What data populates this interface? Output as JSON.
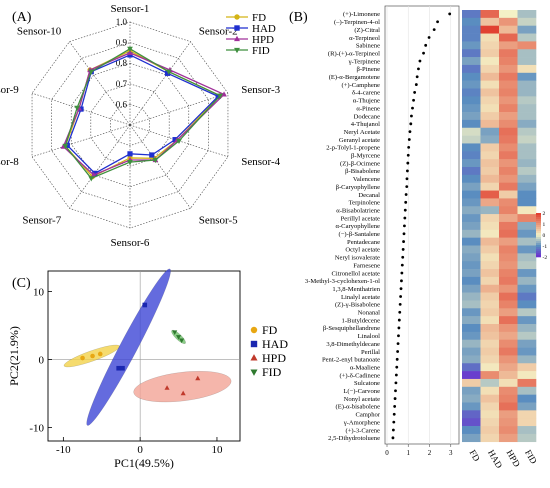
{
  "panel_labels": {
    "a": "(A)",
    "b": "(B)",
    "c": "(C)"
  },
  "chart_data": [
    {
      "type": "radar",
      "panel": "(A)",
      "axes": [
        "Sensor-1",
        "Sensor-2",
        "Sensor-3",
        "Sensor-4",
        "Sensor-5",
        "Sensor-6",
        "Sensor-7",
        "Sensor-8",
        "Sensor-9",
        "Sensor-10"
      ],
      "rlim": [
        0.5,
        1.0
      ],
      "ring_labels": [
        "0.6",
        "0.7",
        "0.8",
        "0.9",
        "1.0"
      ],
      "legend_position": "top-right",
      "series": [
        {
          "name": "FD",
          "color": "#d4b416",
          "marker": "circle",
          "values": [
            0.86,
            0.82,
            0.96,
            0.74,
            0.7,
            0.66,
            0.81,
            0.83,
            0.76,
            0.83
          ]
        },
        {
          "name": "HAD",
          "color": "#1f2fcf",
          "marker": "square",
          "values": [
            0.84,
            0.81,
            0.95,
            0.73,
            0.68,
            0.64,
            0.79,
            0.82,
            0.75,
            0.82
          ]
        },
        {
          "name": "HPD",
          "color": "#a0309a",
          "marker": "triangle-up",
          "values": [
            0.85,
            0.83,
            0.98,
            0.74,
            0.71,
            0.67,
            0.8,
            0.84,
            0.76,
            0.83
          ]
        },
        {
          "name": "FID",
          "color": "#3f8f3f",
          "marker": "triangle-down",
          "values": [
            0.87,
            0.82,
            0.96,
            0.75,
            0.71,
            0.68,
            0.82,
            0.83,
            0.77,
            0.82
          ]
        }
      ]
    },
    {
      "type": "dot+heatmap",
      "panel": "(B)",
      "compounds": [
        "(+)-Limonene",
        "(–)-Terpinen-4-ol",
        "(Z)-Citral",
        "α-Terpineol",
        "Sabinene",
        "(R)-(+)-α-Terpineol",
        "γ-Terpinene",
        "β-Pinene",
        "(E)-α-Bergamotene",
        "(+)-Camphene",
        "δ-4-carene",
        "α-Thujene",
        "α-Pinene",
        "Dodecane",
        "4-Thujanol",
        "Neryl Acetate",
        "Geranyl acetate",
        "2-p-Tolyl-1-propene",
        "β-Myrcene",
        "(Z)-β-Ocimene",
        "β-Bisabolene",
        "Valencene",
        "β-Caryophyllene",
        "Decanal",
        "Terpinolene",
        "α-Bisabolatriene",
        "Perillyl acetate",
        "α-Caryophyllene",
        "(−)-β-Santalene",
        "Pentadecane",
        "Octyl acetate",
        "Neryl isovalerate",
        "Farnesene",
        "Citronellol acetate",
        "3-Methyl-3-cyclohexen-1-ol",
        "1,3,8-Menthatrien",
        "Linalyl acetate",
        "(Z)-γ-Bisabolene",
        "Nonanal",
        "1-Butyldecene",
        "β-Sesquiphellandrene",
        "Linalool",
        "3,8-Dimethyldecane",
        "Perillal",
        "Pent-2-enyl butanoate",
        "α-Maaliene",
        "(+)-δ-Cadinene",
        "Sulcatone",
        "L(−)-Carvone",
        "Nonyl acetate",
        "(E)-α-bisabolene",
        "Camphor",
        "γ-Amorphene",
        "(+)-3-Carene",
        "2,5-Dihydrotoluene"
      ],
      "dot_values": [
        2.95,
        2.38,
        2.22,
        1.98,
        1.82,
        1.72,
        1.55,
        1.48,
        1.42,
        1.38,
        1.3,
        1.25,
        1.2,
        1.15,
        1.12,
        1.08,
        1.05,
        1.02,
        1.0,
        0.98,
        0.96,
        0.94,
        0.93,
        0.9,
        0.88,
        0.86,
        0.84,
        0.82,
        0.8,
        0.78,
        0.76,
        0.74,
        0.72,
        0.7,
        0.68,
        0.66,
        0.64,
        0.62,
        0.6,
        0.58,
        0.56,
        0.54,
        0.52,
        0.5,
        0.48,
        0.46,
        0.44,
        0.42,
        0.4,
        0.38,
        0.36,
        0.34,
        0.32,
        0.3,
        0.28
      ],
      "dot_xlim": [
        0,
        3.2
      ],
      "dot_ticks": [
        "0",
        "1",
        "2",
        "3"
      ],
      "heatmap_columns": [
        "FD",
        "HAD",
        "HPD",
        "FID"
      ],
      "heatmap_values": [
        [
          -1.2,
          1.5,
          0.0,
          -0.5
        ],
        [
          -1.0,
          0.5,
          1.0,
          -0.3
        ],
        [
          -1.1,
          1.9,
          0.6,
          -0.8
        ],
        [
          -1.1,
          0.2,
          1.5,
          -0.4
        ],
        [
          -0.9,
          0.3,
          0.9,
          1.1
        ],
        [
          -1.2,
          0.4,
          1.3,
          -0.5
        ],
        [
          -0.8,
          0.1,
          1.2,
          -0.5
        ],
        [
          -1.2,
          0.3,
          1.0,
          0.2
        ],
        [
          -1.0,
          0.6,
          1.3,
          -0.9
        ],
        [
          -0.9,
          0.2,
          1.1,
          -0.6
        ],
        [
          -1.1,
          0.5,
          1.2,
          -0.6
        ],
        [
          -1.0,
          0.3,
          1.0,
          -0.4
        ],
        [
          -0.9,
          0.2,
          1.2,
          -0.5
        ],
        [
          -0.8,
          0.4,
          0.9,
          -0.5
        ],
        [
          -1.0,
          0.6,
          1.1,
          -0.7
        ],
        [
          -0.2,
          -0.8,
          1.4,
          -0.4
        ],
        [
          -0.3,
          -0.7,
          1.3,
          -0.3
        ],
        [
          -1.0,
          0.4,
          1.1,
          -0.5
        ],
        [
          -1.1,
          0.3,
          1.3,
          -0.5
        ],
        [
          -0.9,
          0.5,
          1.0,
          -0.6
        ],
        [
          -1.2,
          0.4,
          1.2,
          -0.4
        ],
        [
          -1.0,
          0.6,
          1.0,
          -0.6
        ],
        [
          -0.8,
          0.3,
          1.3,
          -0.8
        ],
        [
          -1.0,
          1.6,
          0.4,
          -1.0
        ],
        [
          -0.9,
          0.8,
          1.1,
          -1.0
        ],
        [
          -0.7,
          -0.6,
          1.2,
          0.1
        ],
        [
          -0.9,
          0.3,
          0.8,
          1.2
        ],
        [
          -0.8,
          0.2,
          1.3,
          -0.7
        ],
        [
          -0.6,
          0.1,
          1.4,
          -0.9
        ],
        [
          -1.0,
          0.6,
          0.9,
          -0.5
        ],
        [
          -0.7,
          0.4,
          1.2,
          -0.9
        ],
        [
          -0.8,
          0.2,
          1.1,
          -0.5
        ],
        [
          -0.9,
          0.3,
          1.0,
          -0.4
        ],
        [
          -0.8,
          0.5,
          1.2,
          -0.9
        ],
        [
          -1.0,
          0.3,
          1.3,
          -0.6
        ],
        [
          -0.8,
          0.7,
          1.0,
          -0.9
        ],
        [
          -0.6,
          0.4,
          1.4,
          -1.2
        ],
        [
          -0.5,
          0.3,
          1.2,
          -1.0
        ],
        [
          -0.9,
          0.4,
          0.9,
          -0.4
        ],
        [
          -0.7,
          0.2,
          1.4,
          -0.9
        ],
        [
          -1.0,
          0.6,
          1.0,
          -0.6
        ],
        [
          -0.9,
          0.5,
          0.8,
          -0.4
        ],
        [
          -0.6,
          0.3,
          1.1,
          -0.8
        ],
        [
          -0.8,
          0.4,
          1.3,
          -0.9
        ],
        [
          -0.7,
          0.3,
          1.0,
          -0.6
        ],
        [
          -1.3,
          0.1,
          0.8,
          0.4
        ],
        [
          -1.8,
          1.1,
          0.6,
          0.1
        ],
        [
          0.4,
          -0.4,
          0.2,
          1.3
        ],
        [
          -0.8,
          0.2,
          1.1,
          -0.5
        ],
        [
          -0.7,
          0.5,
          1.2,
          -1.0
        ],
        [
          -0.9,
          0.3,
          1.4,
          -0.8
        ],
        [
          -1.4,
          0.2,
          0.9,
          0.3
        ],
        [
          -1.6,
          0.3,
          1.0,
          0.3
        ],
        [
          -1.0,
          0.4,
          1.1,
          -0.5
        ],
        [
          -0.8,
          0.3,
          0.9,
          -0.4
        ]
      ],
      "colorbar_ticks": [
        "2",
        "1",
        "0",
        "-1",
        "-2"
      ],
      "colorbar_range": [
        -2,
        2
      ],
      "colormap": {
        "low": "#6d2ad0",
        "mid": "#f4f1c6",
        "high": "#e0392a",
        "low_mid": "#5a8dc0"
      }
    },
    {
      "type": "scatter",
      "panel": "(C)",
      "xlabel": "PC1(49.5%)",
      "ylabel": "PC2(21.9%)",
      "xlim": [
        -12,
        13
      ],
      "ylim": [
        -12,
        13
      ],
      "xticks": [
        "-10",
        "0",
        "10"
      ],
      "yticks": [
        "-10",
        "0",
        "10"
      ],
      "legend_position": "right",
      "series": [
        {
          "name": "FD",
          "color": "#e8a712",
          "fill": "#f2d24a",
          "marker": "circle",
          "points": [
            [
              -7.5,
              0.2
            ],
            [
              -6.2,
              0.5
            ],
            [
              -5.2,
              0.8
            ]
          ],
          "ellipse": {
            "cx": -6.3,
            "cy": 0.5,
            "rx": 3.9,
            "ry": 0.75,
            "angle_deg": 22
          }
        },
        {
          "name": "HAD",
          "color": "#1a27b0",
          "fill": "#3d46d6",
          "marker": "square",
          "points": [
            [
              -2.8,
              -1.3
            ],
            [
              -2.3,
              -1.3
            ],
            [
              0.6,
              8.0
            ]
          ],
          "ellipse": {
            "cx": -1.5,
            "cy": 1.8,
            "rx": 12.7,
            "ry": 1.15,
            "angle_deg": 65
          }
        },
        {
          "name": "HPD",
          "color": "#c0392b",
          "fill": "#f2a496",
          "marker": "triangle-up",
          "points": [
            [
              3.5,
              -4.2
            ],
            [
              5.6,
              -5.0
            ],
            [
              7.5,
              -2.8
            ]
          ],
          "ellipse": {
            "cx": 5.5,
            "cy": -4.0,
            "rx": 6.4,
            "ry": 2.1,
            "angle_deg": 8
          }
        },
        {
          "name": "FID",
          "color": "#2f7a2f",
          "fill": "#6fbf6a",
          "marker": "triangle-down",
          "points": [
            [
              4.5,
              4.0
            ],
            [
              5.0,
              3.3
            ],
            [
              5.4,
              2.8
            ]
          ],
          "ellipse": {
            "cx": 5.0,
            "cy": 3.3,
            "rx": 1.3,
            "ry": 0.4,
            "angle_deg": -48
          }
        }
      ]
    }
  ]
}
